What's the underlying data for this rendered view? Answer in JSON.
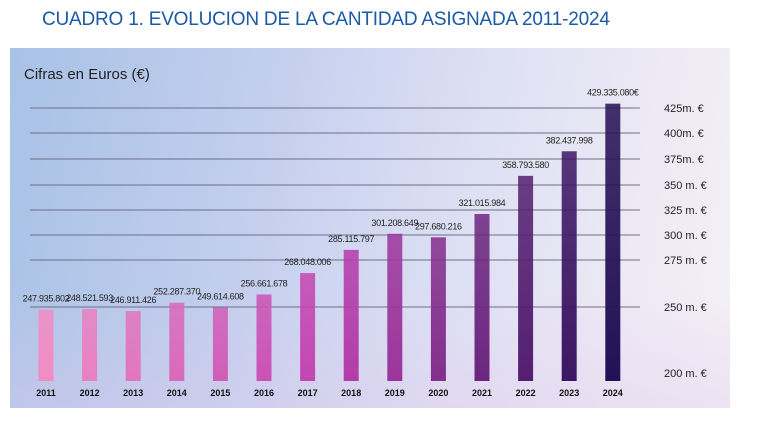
{
  "title": "CUADRO 1. EVOLUCION DE LA CANTIDAD ASIGNADA 2011-2024",
  "chart_data": {
    "type": "bar",
    "title": "CUADRO 1. EVOLUCION DE LA CANTIDAD ASIGNADA 2011-2024",
    "subtitle": "Cifras en Euros (€)",
    "categories": [
      "2011",
      "2012",
      "2013",
      "2014",
      "2015",
      "2016",
      "2017",
      "2018",
      "2019",
      "2020",
      "2021",
      "2022",
      "2023",
      "2024"
    ],
    "values": [
      247935802,
      248521593,
      246911426,
      252287370,
      249614608,
      256661678,
      268048006,
      285115797,
      301208649,
      297680216,
      321015984,
      358793580,
      382437998,
      429335080
    ],
    "data_labels": [
      "247.935.802",
      "248.521.593",
      "246.911.426",
      "252.287.370",
      "249.614.608",
      "256.661.678",
      "268.048.006",
      "285.115.797",
      "301.208.649",
      "297.680.216",
      "321.015.984",
      "358.793.580",
      "382.437.998",
      "429.335.080€"
    ],
    "y_ticks": [
      {
        "value": 200000000,
        "label": "200 m. €"
      },
      {
        "value": 250000000,
        "label": "250 m. €"
      },
      {
        "value": 275000000,
        "label": "275 m. €"
      },
      {
        "value": 300000000,
        "label": "300 m. €"
      },
      {
        "value": 325000000,
        "label": "325 m. €"
      },
      {
        "value": 350000000,
        "label": "350 m. €"
      },
      {
        "value": 375000000,
        "label": "375m. €"
      },
      {
        "value": 400000000,
        "label": "400m. €"
      },
      {
        "value": 425000000,
        "label": "425m. €"
      }
    ],
    "y_axis_position": "right",
    "y_scale": "non-linear",
    "grid": true,
    "colors": {
      "start": "#f08cc4",
      "mid": "#c040b0",
      "end": "#241055"
    }
  }
}
